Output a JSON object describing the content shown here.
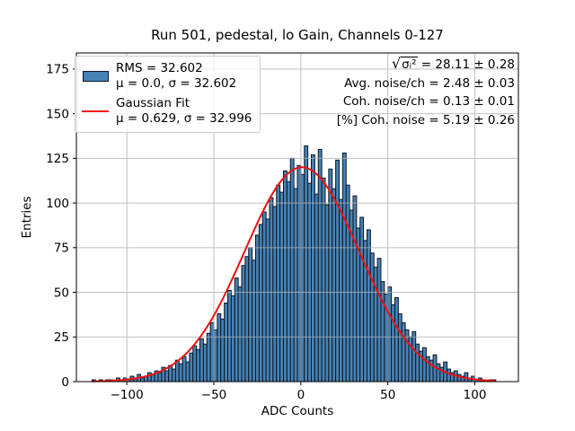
{
  "title": "Run 501, pedestal, lo Gain, Channels 0-127",
  "colors": {
    "bar_fill": "#4682b4",
    "bar_edge": "#0d1524",
    "fit_line": "#ee1111",
    "grid": "#b0b0b0",
    "axis": "#000000",
    "legend_border": "#cccccc",
    "text": "#000000"
  },
  "legend": {
    "hist_line1": "RMS = 32.602",
    "hist_line2": "μ = 0.0, σ = 32.602",
    "fit_line1": "Gaussian Fit",
    "fit_line2": "μ = 0.629, σ = 32.996"
  },
  "annotations": {
    "sqrt_radicand": "σᵢ²",
    "sqrt_rest": " = 28.11 ± 0.28",
    "line2": "Avg. noise/ch = 2.48 ± 0.03",
    "line3": "Coh. noise/ch = 0.13 ± 0.01",
    "line4": "[%] Coh. noise = 5.19 ± 0.26"
  },
  "chart_data": {
    "type": "bar",
    "subtype": "histogram",
    "title": "Run 501, pedestal, lo Gain, Channels 0-127",
    "xlabel": "ADC Counts",
    "ylabel": "Entries",
    "xlim": [
      -129,
      125
    ],
    "ylim": [
      0,
      184
    ],
    "xtick_values": [
      -100,
      -50,
      0,
      50,
      100
    ],
    "xtick_labels": [
      "−100",
      "−50",
      "0",
      "50",
      "100"
    ],
    "ytick_values": [
      0,
      25,
      50,
      75,
      100,
      125,
      150,
      175
    ],
    "ytick_labels": [
      "0",
      "25",
      "50",
      "75",
      "100",
      "125",
      "150",
      "175"
    ],
    "grid": true,
    "legend_position": "upper left",
    "histogram": {
      "bin_start": -120,
      "bin_width": 2,
      "n_bins": 116,
      "counts": [
        1,
        0,
        1,
        0,
        1,
        1,
        0,
        2,
        1,
        2,
        1,
        3,
        2,
        4,
        2,
        3,
        5,
        4,
        6,
        5,
        8,
        6,
        9,
        7,
        12,
        10,
        14,
        11,
        16,
        20,
        18,
        24,
        21,
        27,
        33,
        29,
        38,
        35,
        44,
        51,
        48,
        58,
        53,
        65,
        70,
        75,
        68,
        82,
        88,
        95,
        91,
        103,
        98,
        110,
        106,
        118,
        112,
        125,
        108,
        121,
        116,
        132,
        111,
        127,
        105,
        130,
        114,
        99,
        119,
        108,
        124,
        102,
        128,
        110,
        96,
        104,
        86,
        92,
        79,
        85,
        72,
        64,
        69,
        56,
        49,
        53,
        43,
        47,
        38,
        33,
        29,
        25,
        28,
        21,
        17,
        19,
        14,
        12,
        15,
        10,
        8,
        11,
        7,
        5,
        6,
        4,
        3,
        5,
        2,
        3,
        1,
        2,
        1,
        0,
        1,
        1
      ],
      "stats": {
        "rms": 32.602,
        "mu": 0.0,
        "sigma": 32.602
      }
    },
    "gaussian_fit": {
      "amplitude": 120,
      "mu": 0.629,
      "sigma": 32.996,
      "mu_err_display": "0.629",
      "x_range": [
        -120,
        112
      ]
    },
    "derived_stats": {
      "sqrt_mean_sigma2": "28.11 ± 0.28",
      "avg_noise_per_ch": "2.48 ± 0.03",
      "coh_noise_per_ch": "0.13 ± 0.01",
      "pct_coh_noise": "5.19 ± 0.26"
    }
  }
}
